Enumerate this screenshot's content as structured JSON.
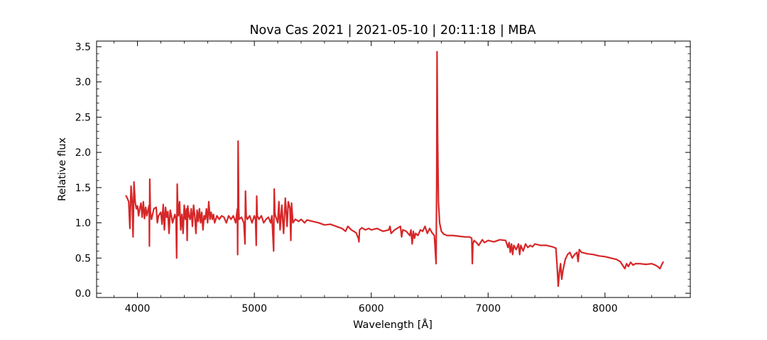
{
  "chart_data": {
    "type": "line",
    "title": "Nova Cas 2021 | 2021-05-10 | 20:11:18 | MBA",
    "xlabel": "Wavelength [Å]",
    "ylabel": "Relative flux",
    "xlim": [
      3650,
      8730
    ],
    "ylim": [
      -0.06,
      3.58
    ],
    "xticks": [
      4000,
      5000,
      6000,
      7000,
      8000
    ],
    "xtick_labels": [
      "4000",
      "5000",
      "6000",
      "7000",
      "8000"
    ],
    "yticks": [
      0.0,
      0.5,
      1.0,
      1.5,
      2.0,
      2.5,
      3.0,
      3.5
    ],
    "ytick_labels": [
      "0.0",
      "0.5",
      "1.0",
      "1.5",
      "2.0",
      "2.5",
      "3.0",
      "3.5"
    ],
    "grid": false,
    "line_color": "#d62728",
    "series": [
      {
        "points": [
          [
            3900,
            1.39
          ],
          [
            3910,
            1.36
          ],
          [
            3925,
            1.3
          ],
          [
            3935,
            0.92
          ],
          [
            3945,
            1.52
          ],
          [
            3955,
            1.28
          ],
          [
            3962,
            0.8
          ],
          [
            3970,
            1.58
          ],
          [
            3980,
            1.3
          ],
          [
            3990,
            1.2
          ],
          [
            4000,
            1.24
          ],
          [
            4010,
            1.1
          ],
          [
            4020,
            1.21
          ],
          [
            4030,
            1.28
          ],
          [
            4040,
            1.08
          ],
          [
            4050,
            1.3
          ],
          [
            4060,
            1.06
          ],
          [
            4070,
            1.22
          ],
          [
            4080,
            1.1
          ],
          [
            4090,
            1.18
          ],
          [
            4100,
            1.25
          ],
          [
            4102,
            0.67
          ],
          [
            4105,
            1.62
          ],
          [
            4110,
            1.15
          ],
          [
            4120,
            1.05
          ],
          [
            4140,
            1.2
          ],
          [
            4160,
            1.22
          ],
          [
            4170,
            1.0
          ],
          [
            4180,
            1.1
          ],
          [
            4200,
            1.15
          ],
          [
            4210,
            0.98
          ],
          [
            4220,
            1.26
          ],
          [
            4230,
            0.9
          ],
          [
            4240,
            1.22
          ],
          [
            4250,
            1.08
          ],
          [
            4260,
            1.16
          ],
          [
            4270,
            0.85
          ],
          [
            4280,
            1.18
          ],
          [
            4290,
            1.1
          ],
          [
            4300,
            1.0
          ],
          [
            4320,
            1.12
          ],
          [
            4330,
            1.05
          ],
          [
            4335,
            0.5
          ],
          [
            4340,
            1.55
          ],
          [
            4345,
            1.2
          ],
          [
            4350,
            1.1
          ],
          [
            4360,
            1.3
          ],
          [
            4370,
            0.9
          ],
          [
            4380,
            1.12
          ],
          [
            4390,
            0.85
          ],
          [
            4400,
            1.25
          ],
          [
            4410,
            1.05
          ],
          [
            4420,
            1.2
          ],
          [
            4425,
            0.75
          ],
          [
            4430,
            1.24
          ],
          [
            4440,
            1.1
          ],
          [
            4450,
            1.05
          ],
          [
            4460,
            1.2
          ],
          [
            4470,
            0.95
          ],
          [
            4480,
            1.25
          ],
          [
            4490,
            1.1
          ],
          [
            4500,
            0.85
          ],
          [
            4510,
            1.18
          ],
          [
            4520,
            1.02
          ],
          [
            4530,
            1.2
          ],
          [
            4540,
            1.0
          ],
          [
            4550,
            1.15
          ],
          [
            4560,
            0.9
          ],
          [
            4570,
            1.1
          ],
          [
            4580,
            1.05
          ],
          [
            4590,
            1.2
          ],
          [
            4600,
            1.0
          ],
          [
            4610,
            1.3
          ],
          [
            4620,
            1.05
          ],
          [
            4630,
            1.15
          ],
          [
            4640,
            1.05
          ],
          [
            4650,
            1.12
          ],
          [
            4660,
            1.0
          ],
          [
            4680,
            1.1
          ],
          [
            4700,
            1.05
          ],
          [
            4720,
            1.1
          ],
          [
            4740,
            1.08
          ],
          [
            4760,
            1.0
          ],
          [
            4780,
            1.1
          ],
          [
            4800,
            1.05
          ],
          [
            4820,
            1.1
          ],
          [
            4840,
            1.0
          ],
          [
            4855,
            1.2
          ],
          [
            4857,
            0.55
          ],
          [
            4861,
            2.16
          ],
          [
            4866,
            1.2
          ],
          [
            4870,
            1.05
          ],
          [
            4890,
            1.08
          ],
          [
            4910,
            1.0
          ],
          [
            4920,
            0.7
          ],
          [
            4924,
            1.45
          ],
          [
            4930,
            1.1
          ],
          [
            4940,
            1.05
          ],
          [
            4960,
            1.1
          ],
          [
            4980,
            1.0
          ],
          [
            5000,
            1.1
          ],
          [
            5010,
            1.05
          ],
          [
            5016,
            0.68
          ],
          [
            5020,
            1.38
          ],
          [
            5025,
            1.1
          ],
          [
            5040,
            1.05
          ],
          [
            5060,
            1.1
          ],
          [
            5080,
            1.0
          ],
          [
            5100,
            1.05
          ],
          [
            5120,
            1.08
          ],
          [
            5140,
            1.0
          ],
          [
            5150,
            1.1
          ],
          [
            5165,
            0.6
          ],
          [
            5170,
            1.48
          ],
          [
            5175,
            1.15
          ],
          [
            5180,
            1.1
          ],
          [
            5200,
            1.0
          ],
          [
            5210,
            1.3
          ],
          [
            5220,
            0.9
          ],
          [
            5235,
            1.25
          ],
          [
            5250,
            0.85
          ],
          [
            5265,
            1.35
          ],
          [
            5280,
            0.95
          ],
          [
            5290,
            1.3
          ],
          [
            5305,
            1.2
          ],
          [
            5312,
            0.75
          ],
          [
            5318,
            1.28
          ],
          [
            5330,
            1.0
          ],
          [
            5350,
            1.05
          ],
          [
            5380,
            1.02
          ],
          [
            5400,
            1.05
          ],
          [
            5430,
            1.0
          ],
          [
            5450,
            1.04
          ],
          [
            5500,
            1.02
          ],
          [
            5550,
            1.0
          ],
          [
            5600,
            0.97
          ],
          [
            5650,
            0.98
          ],
          [
            5700,
            0.95
          ],
          [
            5750,
            0.92
          ],
          [
            5780,
            0.88
          ],
          [
            5800,
            0.95
          ],
          [
            5830,
            0.9
          ],
          [
            5870,
            0.86
          ],
          [
            5890,
            0.78
          ],
          [
            5895,
            0.73
          ],
          [
            5900,
            0.9
          ],
          [
            5920,
            0.93
          ],
          [
            5950,
            0.9
          ],
          [
            5980,
            0.92
          ],
          [
            6000,
            0.9
          ],
          [
            6050,
            0.92
          ],
          [
            6100,
            0.88
          ],
          [
            6150,
            0.9
          ],
          [
            6160,
            0.95
          ],
          [
            6170,
            0.85
          ],
          [
            6200,
            0.9
          ],
          [
            6250,
            0.95
          ],
          [
            6260,
            0.8
          ],
          [
            6270,
            0.9
          ],
          [
            6300,
            0.88
          ],
          [
            6330,
            0.82
          ],
          [
            6340,
            0.9
          ],
          [
            6350,
            0.7
          ],
          [
            6360,
            0.88
          ],
          [
            6370,
            0.78
          ],
          [
            6380,
            0.85
          ],
          [
            6400,
            0.82
          ],
          [
            6420,
            0.9
          ],
          [
            6440,
            0.88
          ],
          [
            6460,
            0.95
          ],
          [
            6480,
            0.85
          ],
          [
            6500,
            0.92
          ],
          [
            6520,
            0.86
          ],
          [
            6540,
            0.82
          ],
          [
            6555,
            0.42
          ],
          [
            6560,
            1.6
          ],
          [
            6563,
            3.43
          ],
          [
            6568,
            2.2
          ],
          [
            6575,
            1.3
          ],
          [
            6585,
            1.0
          ],
          [
            6600,
            0.88
          ],
          [
            6620,
            0.84
          ],
          [
            6650,
            0.82
          ],
          [
            6700,
            0.82
          ],
          [
            6750,
            0.81
          ],
          [
            6800,
            0.8
          ],
          [
            6840,
            0.8
          ],
          [
            6860,
            0.78
          ],
          [
            6865,
            0.42
          ],
          [
            6870,
            0.7
          ],
          [
            6880,
            0.75
          ],
          [
            6900,
            0.72
          ],
          [
            6920,
            0.68
          ],
          [
            6950,
            0.76
          ],
          [
            6970,
            0.72
          ],
          [
            7000,
            0.75
          ],
          [
            7050,
            0.73
          ],
          [
            7100,
            0.76
          ],
          [
            7150,
            0.75
          ],
          [
            7170,
            0.65
          ],
          [
            7180,
            0.72
          ],
          [
            7190,
            0.58
          ],
          [
            7200,
            0.7
          ],
          [
            7210,
            0.55
          ],
          [
            7220,
            0.68
          ],
          [
            7240,
            0.62
          ],
          [
            7260,
            0.7
          ],
          [
            7270,
            0.55
          ],
          [
            7280,
            0.68
          ],
          [
            7300,
            0.6
          ],
          [
            7320,
            0.7
          ],
          [
            7340,
            0.65
          ],
          [
            7360,
            0.68
          ],
          [
            7380,
            0.66
          ],
          [
            7400,
            0.7
          ],
          [
            7450,
            0.68
          ],
          [
            7500,
            0.68
          ],
          [
            7550,
            0.66
          ],
          [
            7580,
            0.64
          ],
          [
            7590,
            0.4
          ],
          [
            7600,
            0.1
          ],
          [
            7610,
            0.3
          ],
          [
            7620,
            0.42
          ],
          [
            7630,
            0.2
          ],
          [
            7640,
            0.32
          ],
          [
            7660,
            0.48
          ],
          [
            7680,
            0.55
          ],
          [
            7700,
            0.58
          ],
          [
            7720,
            0.5
          ],
          [
            7740,
            0.55
          ],
          [
            7760,
            0.58
          ],
          [
            7770,
            0.45
          ],
          [
            7780,
            0.62
          ],
          [
            7800,
            0.58
          ],
          [
            7850,
            0.56
          ],
          [
            7900,
            0.55
          ],
          [
            7950,
            0.53
          ],
          [
            8000,
            0.52
          ],
          [
            8050,
            0.5
          ],
          [
            8100,
            0.48
          ],
          [
            8130,
            0.45
          ],
          [
            8150,
            0.4
          ],
          [
            8170,
            0.35
          ],
          [
            8185,
            0.42
          ],
          [
            8200,
            0.38
          ],
          [
            8220,
            0.44
          ],
          [
            8240,
            0.4
          ],
          [
            8260,
            0.42
          ],
          [
            8300,
            0.42
          ],
          [
            8350,
            0.41
          ],
          [
            8400,
            0.42
          ],
          [
            8430,
            0.4
          ],
          [
            8450,
            0.38
          ],
          [
            8470,
            0.35
          ],
          [
            8490,
            0.42
          ],
          [
            8500,
            0.45
          ]
        ]
      }
    ]
  }
}
